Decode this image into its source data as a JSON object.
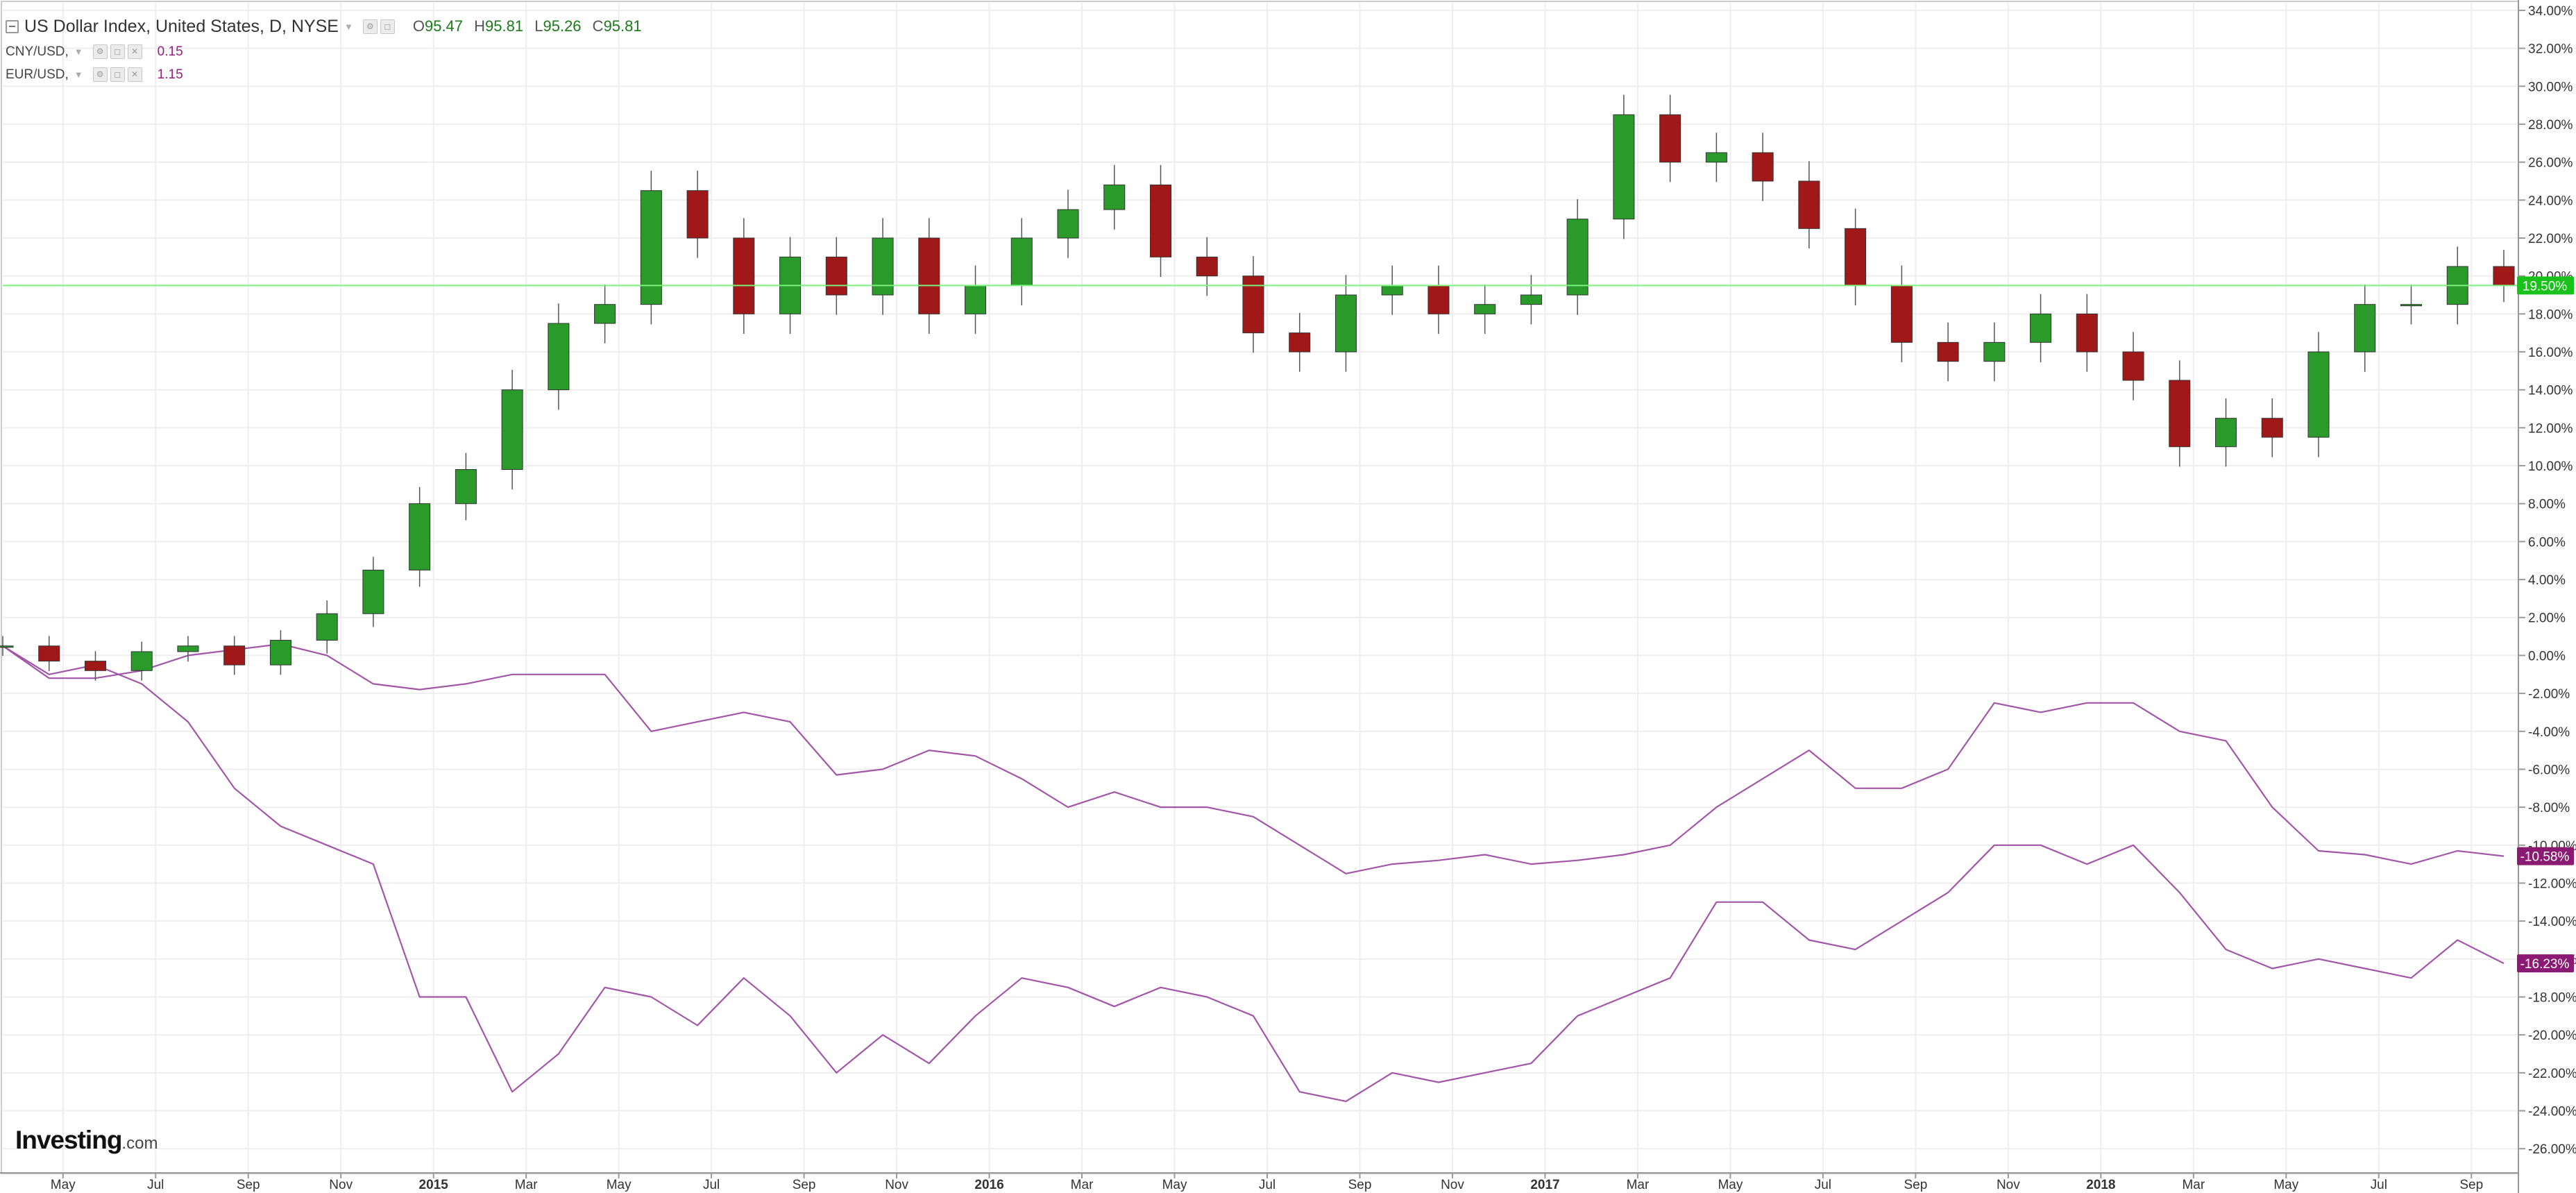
{
  "legend": {
    "main_title": "US Dollar Index, United States, D, NYSE",
    "ohlc": [
      {
        "key": "O",
        "value": "95.47"
      },
      {
        "key": "H",
        "value": "95.81"
      },
      {
        "key": "L",
        "value": "95.26"
      },
      {
        "key": "C",
        "value": "95.81"
      }
    ],
    "comparisons": [
      {
        "label": "CNY/USD,",
        "value": "0.15"
      },
      {
        "label": "EUR/USD,",
        "value": "1.15"
      }
    ]
  },
  "logo": {
    "brand": "Investing",
    "domain": ".com"
  },
  "colors": {
    "up": "#2a9a2a",
    "down": "#a01818",
    "compare_line": "#a256a8",
    "last_line": "#7cf27c",
    "badge_green": "#19c21a",
    "badge_purple": "#8a1a72",
    "grid": "#eeeeee",
    "axis": "#999999"
  },
  "chart_data": {
    "type": "line",
    "y_unit": "% change",
    "ylim": [
      -27.2,
      34.4
    ],
    "y_ticks": [
      "34.00%",
      "32.00%",
      "30.00%",
      "28.00%",
      "26.00%",
      "24.00%",
      "22.00%",
      "20.00%",
      "18.00%",
      "16.00%",
      "14.00%",
      "12.00%",
      "10.00%",
      "8.00%",
      "6.00%",
      "4.00%",
      "2.00%",
      "0.00%",
      "-2.00%",
      "-4.00%",
      "-6.00%",
      "-8.00%",
      "-10.00%",
      "-12.00%",
      "-14.00%",
      "-16.00%",
      "-18.00%",
      "-20.00%",
      "-22.00%",
      "-24.00%",
      "-26.00%"
    ],
    "x_ticks": [
      "May",
      "Jul",
      "Sep",
      "Nov",
      "2015",
      "Mar",
      "May",
      "Jul",
      "Sep",
      "Nov",
      "2016",
      "Mar",
      "May",
      "Jul",
      "Sep",
      "Nov",
      "2017",
      "Mar",
      "May",
      "Jul",
      "Sep",
      "Nov",
      "2018",
      "Mar",
      "May",
      "Jul",
      "Sep"
    ],
    "x_ticks_bold": [
      "2015",
      "2016",
      "2017",
      "2018"
    ],
    "x_tick_index": [
      1.3,
      3.3,
      5.3,
      7.3,
      9.3,
      11.3,
      13.3,
      15.3,
      17.3,
      19.3,
      21.3,
      23.3,
      25.3,
      27.3,
      29.3,
      31.3,
      33.3,
      35.3,
      37.3,
      39.3,
      41.3,
      43.3,
      45.3,
      47.3,
      49.3,
      51.3,
      53.3
    ],
    "x_range_index": [
      0,
      54.3
    ],
    "grid": true,
    "series": [
      {
        "style": "candlestick",
        "last_label": "19.50%",
        "x_index": [
          0,
          1,
          2,
          3,
          4,
          5,
          6,
          7,
          8,
          9,
          10,
          11,
          12,
          13,
          14,
          15,
          16,
          17,
          18,
          19,
          20,
          21,
          22,
          23,
          24,
          25,
          26,
          27,
          28,
          29,
          30,
          31,
          32,
          33,
          34,
          35,
          36,
          37,
          38,
          39,
          40,
          41,
          42,
          43,
          44,
          45,
          46,
          47,
          48,
          49,
          50,
          51,
          52,
          53,
          54
        ],
        "values": [
          0.5,
          -0.3,
          -0.8,
          0.2,
          0.5,
          -0.5,
          0.8,
          2.2,
          4.5,
          8,
          9.8,
          14,
          17.5,
          18.5,
          24.5,
          22,
          18,
          21,
          19,
          22,
          18,
          19.5,
          22,
          23.5,
          24.8,
          21,
          20,
          17,
          16,
          19,
          19.5,
          18,
          18.5,
          19,
          23,
          28.5,
          26,
          26.5,
          25,
          22.5,
          19.5,
          16.5,
          15.5,
          16.5,
          18,
          16,
          14.5,
          11,
          12.5,
          11.5,
          16,
          18.5,
          18.5,
          20.5,
          19.5
        ],
        "ranges": [
          1.5,
          1.5,
          1.5,
          1.5,
          1.5,
          1.5,
          1.5,
          2,
          2,
          2.5,
          2.5,
          3,
          3,
          3,
          3,
          3,
          3,
          3,
          3,
          3,
          3,
          3,
          3,
          3,
          3,
          3,
          3,
          3,
          3,
          3,
          3,
          3,
          3,
          3,
          3,
          3,
          3,
          3,
          3,
          3,
          3,
          3,
          3,
          3,
          3,
          3,
          3,
          3,
          3,
          3,
          3,
          3,
          3,
          3,
          2.5
        ]
      },
      {
        "style": "line",
        "last_label": "-10.58%",
        "x_index": [
          0,
          1,
          2,
          3,
          4,
          5,
          6,
          7,
          8,
          9,
          10,
          11,
          12,
          13,
          14,
          15,
          16,
          17,
          18,
          19,
          20,
          21,
          22,
          23,
          24,
          25,
          26,
          27,
          28,
          29,
          30,
          31,
          32,
          33,
          34,
          35,
          36,
          37,
          38,
          39,
          40,
          41,
          42,
          43,
          44,
          45,
          46,
          47,
          48,
          49,
          50,
          51,
          52,
          53,
          54
        ],
        "values": [
          0.5,
          -1.2,
          -1.2,
          -0.8,
          0,
          0.3,
          0.6,
          0,
          -1.5,
          -1.8,
          -1.5,
          -1,
          -1,
          -1,
          -4,
          -3.5,
          -3,
          -3.5,
          -6.3,
          -6,
          -5,
          -5.3,
          -6.5,
          -8,
          -7.2,
          -8,
          -8,
          -8.5,
          -10,
          -11.5,
          -11,
          -10.8,
          -10.5,
          -11,
          -10.8,
          -10.5,
          -10,
          -8,
          -6.5,
          -5,
          -7,
          -7,
          -6,
          -2.5,
          -3,
          -2.5,
          -2.5,
          -4,
          -4.5,
          -8,
          -10.3,
          -10.5,
          -11,
          -10.3,
          -10.58
        ]
      },
      {
        "style": "line",
        "last_label": "-16.23%",
        "x_index": [
          0,
          1,
          2,
          3,
          4,
          5,
          6,
          7,
          8,
          9,
          10,
          11,
          12,
          13,
          14,
          15,
          16,
          17,
          18,
          19,
          20,
          21,
          22,
          23,
          24,
          25,
          26,
          27,
          28,
          29,
          30,
          31,
          32,
          33,
          34,
          35,
          36,
          37,
          38,
          39,
          40,
          41,
          42,
          43,
          44,
          45,
          46,
          47,
          48,
          49,
          50,
          51,
          52,
          53,
          54
        ],
        "values": [
          0.5,
          -1,
          -0.5,
          -1.5,
          -3.5,
          -7,
          -9,
          -10,
          -11,
          -18,
          -18,
          -23,
          -21,
          -17.5,
          -18,
          -19.5,
          -17,
          -19,
          -22,
          -20,
          -21.5,
          -19,
          -17,
          -17.5,
          -18.5,
          -17.5,
          -18,
          -19,
          -23,
          -23.5,
          -22,
          -22.5,
          -22,
          -21.5,
          -19,
          -18,
          -17,
          -13,
          -13,
          -15,
          -15.5,
          -14,
          -12.5,
          -10,
          -10,
          -11,
          -10,
          -12.5,
          -15.5,
          -16.5,
          -16,
          -16.5,
          -17,
          -15,
          -16.23
        ]
      }
    ]
  }
}
